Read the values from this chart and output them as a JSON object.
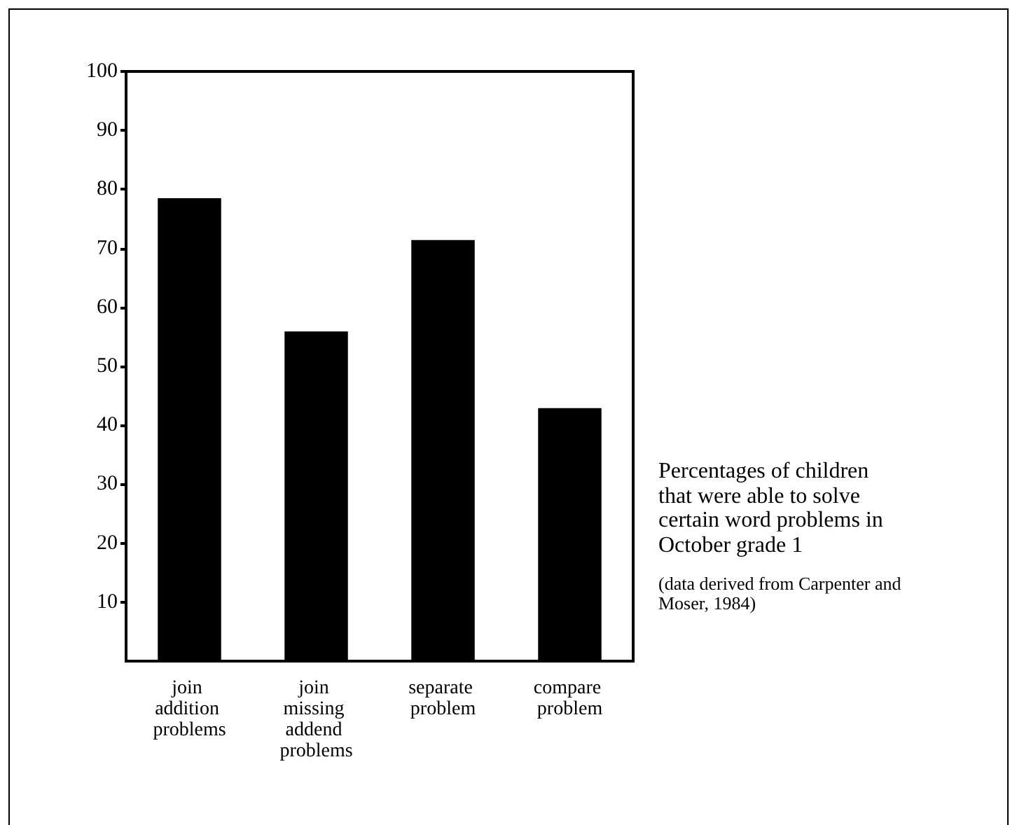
{
  "chart_data": {
    "type": "bar",
    "categories": [
      "join addition problems",
      "join missing addend problems",
      "separate problem",
      "compare problem"
    ],
    "values": [
      78.5,
      55.9,
      71.4,
      42.9
    ],
    "color": "#000000",
    "ylim": [
      0,
      100
    ],
    "yticks": [
      10,
      20,
      30,
      40,
      50,
      60,
      70,
      80,
      90,
      100
    ],
    "grid": false,
    "annotations": [
      "Percentages of children that were able to solve certain word problems in October grade 1",
      "(data derived from Carpenter and Moser, 1984)"
    ]
  }
}
